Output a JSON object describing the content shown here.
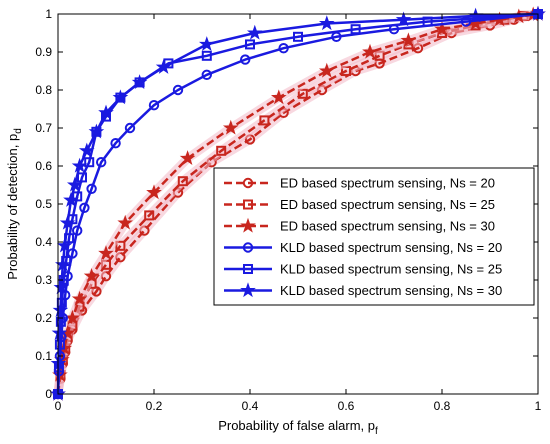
{
  "chart_data": {
    "type": "line",
    "xlabel": "Probability of false alarm, p",
    "xlabel_sub": "f",
    "ylabel": "Probability of detection, p",
    "ylabel_sub": "d",
    "xlim": [
      0,
      1
    ],
    "ylim": [
      0,
      1
    ],
    "x_ticks": [
      "0",
      "0.2",
      "0.4",
      "0.6",
      "0.8",
      "1"
    ],
    "y_ticks": [
      "0",
      "0.1",
      "0.2",
      "0.3",
      "0.4",
      "0.5",
      "0.6",
      "0.7",
      "0.8",
      "0.9",
      "1"
    ],
    "grid": false,
    "legend_position": "center-right",
    "series": [
      {
        "name": "ED based spectrum sensing, Ns = 20",
        "color": "#c8261e",
        "marker": "circle",
        "dashed": true,
        "x": [
          0,
          0.005,
          0.01,
          0.015,
          0.02,
          0.03,
          0.05,
          0.08,
          0.1,
          0.13,
          0.18,
          0.25,
          0.32,
          0.4,
          0.47,
          0.55,
          0.62,
          0.67,
          0.75,
          0.82,
          0.9,
          0.95,
          1.0
        ],
        "y": [
          0,
          0.04,
          0.08,
          0.11,
          0.14,
          0.17,
          0.22,
          0.27,
          0.31,
          0.36,
          0.43,
          0.53,
          0.61,
          0.67,
          0.74,
          0.8,
          0.85,
          0.87,
          0.91,
          0.95,
          0.97,
          0.985,
          1.0
        ]
      },
      {
        "name": "ED based spectrum sensing, Ns = 25",
        "color": "#c8261e",
        "marker": "square",
        "dashed": true,
        "x": [
          0,
          0.005,
          0.01,
          0.015,
          0.02,
          0.03,
          0.045,
          0.07,
          0.1,
          0.13,
          0.19,
          0.26,
          0.34,
          0.43,
          0.51,
          0.6,
          0.67,
          0.73,
          0.8,
          0.87,
          0.93,
          0.97,
          1.0
        ],
        "y": [
          0,
          0.05,
          0.09,
          0.12,
          0.15,
          0.18,
          0.23,
          0.29,
          0.34,
          0.39,
          0.47,
          0.56,
          0.64,
          0.72,
          0.79,
          0.85,
          0.89,
          0.92,
          0.95,
          0.97,
          0.985,
          0.995,
          1.0
        ]
      },
      {
        "name": "ED based spectrum sensing, Ns = 30",
        "color": "#c8261e",
        "marker": "star",
        "dashed": true,
        "x": [
          0,
          0.004,
          0.008,
          0.013,
          0.02,
          0.03,
          0.045,
          0.07,
          0.1,
          0.14,
          0.2,
          0.27,
          0.36,
          0.46,
          0.56,
          0.65,
          0.73,
          0.8,
          0.87,
          0.92,
          0.96,
          0.99,
          1.0
        ],
        "y": [
          0,
          0.05,
          0.09,
          0.12,
          0.16,
          0.2,
          0.25,
          0.31,
          0.37,
          0.45,
          0.53,
          0.62,
          0.7,
          0.78,
          0.85,
          0.9,
          0.93,
          0.96,
          0.975,
          0.985,
          0.993,
          0.998,
          1.0
        ]
      },
      {
        "name": "KLD based spectrum sensing, Ns = 20",
        "color": "#1a1ae0",
        "marker": "circle",
        "dashed": false,
        "x": [
          0,
          0.002,
          0.004,
          0.007,
          0.01,
          0.015,
          0.02,
          0.03,
          0.04,
          0.055,
          0.07,
          0.09,
          0.12,
          0.15,
          0.2,
          0.25,
          0.31,
          0.39,
          0.47,
          0.58,
          0.7,
          0.85,
          1.0
        ],
        "y": [
          0,
          0.06,
          0.1,
          0.15,
          0.2,
          0.26,
          0.31,
          0.37,
          0.43,
          0.49,
          0.54,
          0.61,
          0.66,
          0.7,
          0.76,
          0.8,
          0.84,
          0.88,
          0.91,
          0.94,
          0.96,
          0.98,
          1.0
        ]
      },
      {
        "name": "KLD based spectrum sensing, Ns = 25",
        "color": "#1a1ae0",
        "marker": "square",
        "dashed": false,
        "x": [
          0,
          0.002,
          0.004,
          0.006,
          0.008,
          0.012,
          0.017,
          0.023,
          0.03,
          0.04,
          0.05,
          0.065,
          0.08,
          0.1,
          0.13,
          0.17,
          0.23,
          0.31,
          0.4,
          0.5,
          0.62,
          0.77,
          1.0
        ],
        "y": [
          0,
          0.07,
          0.13,
          0.19,
          0.24,
          0.3,
          0.35,
          0.41,
          0.46,
          0.52,
          0.57,
          0.61,
          0.69,
          0.73,
          0.78,
          0.82,
          0.87,
          0.89,
          0.92,
          0.94,
          0.96,
          0.98,
          1.0
        ]
      },
      {
        "name": "KLD based spectrum sensing, Ns = 30",
        "color": "#1a1ae0",
        "marker": "star",
        "dashed": false,
        "x": [
          0,
          0.001,
          0.003,
          0.005,
          0.007,
          0.01,
          0.014,
          0.02,
          0.027,
          0.035,
          0.045,
          0.06,
          0.08,
          0.1,
          0.13,
          0.17,
          0.22,
          0.31,
          0.41,
          0.56,
          0.72,
          0.87,
          1.0
        ],
        "y": [
          0,
          0.08,
          0.16,
          0.22,
          0.28,
          0.34,
          0.39,
          0.45,
          0.51,
          0.55,
          0.6,
          0.64,
          0.69,
          0.74,
          0.78,
          0.82,
          0.86,
          0.92,
          0.95,
          0.975,
          0.985,
          0.995,
          1.0
        ]
      }
    ]
  }
}
